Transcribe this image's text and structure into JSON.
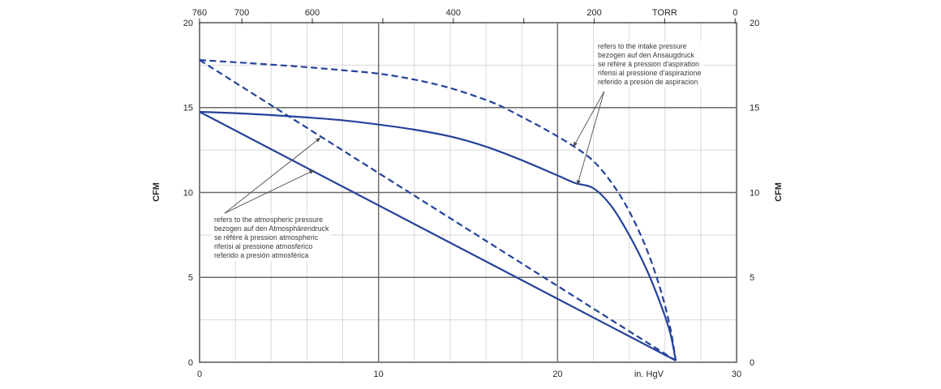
{
  "colors": {
    "curve_blue": "#24429b",
    "grid_minor": "#d9d9d9",
    "grid_major": "#686868",
    "frame": "#7f7f7f",
    "tick": "#4d4d4d",
    "axis_text": "#262626",
    "leader": "#4d4d4d",
    "annotation_text": "#3a3a3a",
    "background": "#ffffff"
  },
  "chart_data": {
    "type": "line",
    "title": "",
    "axes": {
      "bottom": {
        "label": "in. HgV",
        "range": [
          0,
          30
        ],
        "tick_values": [
          0,
          10,
          20,
          30
        ],
        "minor_step": 2,
        "major_gridlines": [
          10,
          20
        ],
        "label_position": 25.1
      },
      "top": {
        "label": "TORR",
        "origin_torr": 760,
        "torr_per_inhg": 25.4,
        "labeled_ticks": [
          760,
          700,
          600,
          400,
          200,
          0
        ],
        "tick_marks": [
          760,
          700,
          600,
          500,
          400,
          300,
          200,
          100,
          0
        ],
        "label_position_torr": 100
      },
      "left": {
        "label": "CFM",
        "range": [
          0,
          20
        ],
        "tick_values": [
          0,
          5,
          10,
          15,
          20
        ],
        "minor_step": 2.5,
        "major_gridlines": [
          5,
          10,
          15
        ]
      },
      "right": {
        "label": "CFM",
        "tick_values": [
          0,
          5,
          10,
          15,
          20
        ]
      }
    },
    "series": [
      {
        "name": "intake-pressure-dashed",
        "style": "dashed",
        "points": [
          [
            0,
            17.8
          ],
          [
            2,
            17.67
          ],
          [
            4,
            17.53
          ],
          [
            6,
            17.38
          ],
          [
            8,
            17.2
          ],
          [
            10,
            17.0
          ],
          [
            12,
            16.65
          ],
          [
            14,
            16.15
          ],
          [
            16,
            15.45
          ],
          [
            17,
            15.0
          ],
          [
            18,
            14.45
          ],
          [
            19,
            13.9
          ],
          [
            20,
            13.3
          ],
          [
            21,
            12.65
          ],
          [
            22,
            11.85
          ],
          [
            23,
            10.6
          ],
          [
            24,
            8.9
          ],
          [
            25,
            6.6
          ],
          [
            25.8,
            4.1
          ],
          [
            26.3,
            2.0
          ],
          [
            26.6,
            0.1
          ]
        ]
      },
      {
        "name": "intake-pressure-solid",
        "style": "solid",
        "points": [
          [
            0,
            14.75
          ],
          [
            2,
            14.67
          ],
          [
            4,
            14.56
          ],
          [
            6,
            14.42
          ],
          [
            8,
            14.25
          ],
          [
            10,
            14.0
          ],
          [
            12,
            13.7
          ],
          [
            14,
            13.3
          ],
          [
            16,
            12.7
          ],
          [
            18,
            11.9
          ],
          [
            20,
            11.0
          ],
          [
            21,
            10.55
          ],
          [
            22,
            10.25
          ],
          [
            23,
            9.2
          ],
          [
            24,
            7.5
          ],
          [
            25,
            5.4
          ],
          [
            25.8,
            3.3
          ],
          [
            26.3,
            1.7
          ],
          [
            26.6,
            0.1
          ]
        ]
      },
      {
        "name": "atmospheric-pressure-dashed",
        "style": "dashed",
        "points": [
          [
            0,
            17.8
          ],
          [
            26.6,
            0.1
          ]
        ]
      },
      {
        "name": "atmospheric-pressure-solid",
        "style": "solid",
        "points": [
          [
            0,
            14.75
          ],
          [
            26.6,
            0.1
          ]
        ]
      }
    ],
    "annotations": [
      {
        "name": "intake-pressure-note",
        "lines": [
          "refers to the intake pressure",
          "bezogen auf den Ansaugdruck",
          "se réfère à pression d'aspiration",
          "riferisi al pressione d'aspirazione",
          "referido a presión de aspiracion"
        ],
        "leader": {
          "origin": [
            22.6,
            15.95
          ],
          "targets": [
            [
              20.89,
              12.7
            ],
            [
              21.11,
              10.45
            ]
          ]
        }
      },
      {
        "name": "atmospheric-pressure-note",
        "lines": [
          "refers to the atmospheric pressure",
          "bezogen auf den Atmosphärendruck",
          "se réfère à pression atmospheric",
          "riferisi al pressione atmosferico",
          "referido a presión atmosférica"
        ],
        "leader": {
          "origin": [
            1.4,
            8.78
          ],
          "targets": [
            [
              6.75,
              13.22
            ],
            [
              6.39,
              11.31
            ]
          ]
        }
      }
    ],
    "legend": null,
    "grid": true
  }
}
